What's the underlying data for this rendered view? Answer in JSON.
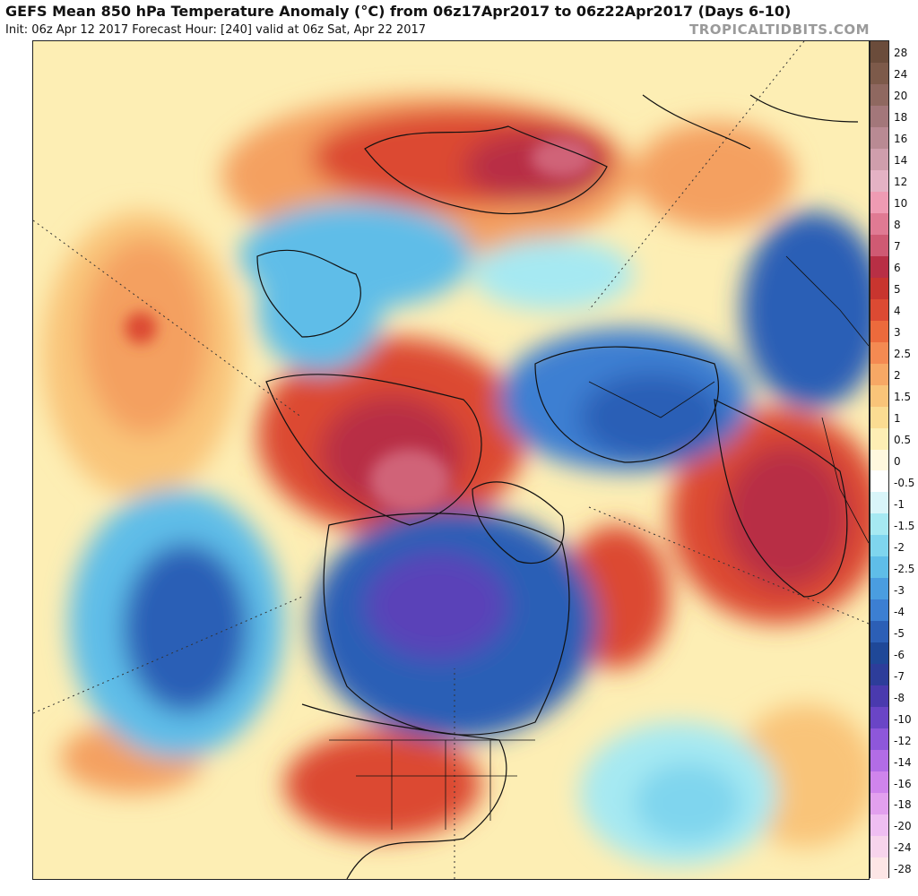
{
  "header": {
    "title": "GEFS Mean 850 hPa Temperature Anomaly (°C) from 06z17Apr2017 to 06z22Apr2017 (Days 6-10)",
    "subtitle": "Init: 06z Apr 12 2017   Forecast Hour: [240]   valid at 06z Sat, Apr 22 2017",
    "brand": "TROPICALTIDBITS.COM"
  },
  "colorbar": {
    "labels": [
      "28",
      "24",
      "20",
      "18",
      "16",
      "14",
      "12",
      "10",
      "8",
      "7",
      "6",
      "5",
      "4",
      "3",
      "2.5",
      "2",
      "1.5",
      "1",
      "0.5",
      "0",
      "-0.5",
      "-1",
      "-1.5",
      "-2",
      "-2.5",
      "-3",
      "-4",
      "-5",
      "-6",
      "-7",
      "-8",
      "-10",
      "-12",
      "-14",
      "-16",
      "-18",
      "-20",
      "-24",
      "-28"
    ],
    "colors": [
      "#6b4c3b",
      "#7d5a4a",
      "#8f6860",
      "#a3777a",
      "#b98a93",
      "#cf9eac",
      "#e4b2c4",
      "#ef9bb3",
      "#e07a93",
      "#cf5a73",
      "#b82f45",
      "#c8352f",
      "#dc4a33",
      "#ec6a3c",
      "#f48a52",
      "#f7a865",
      "#f9c479",
      "#fbdc92",
      "#fdeeb4",
      "#fff8de",
      "#ffffff",
      "#d9f5f9",
      "#a6e9f2",
      "#7fd5ee",
      "#5fbde8",
      "#4a9de0",
      "#3c7fd2",
      "#2c5fb6",
      "#1f4898",
      "#2d3d9a",
      "#4a3aae",
      "#6a45c6",
      "#8e57da",
      "#b26ce6",
      "#cf84ec",
      "#e2a0ee",
      "#efbef2",
      "#f7d4ec",
      "#fde6e6"
    ]
  },
  "map": {
    "colors": {
      "ocean_neutral": "#fdeeb4",
      "warm_light": "#fbdc92",
      "warm_mid": "#f4a060",
      "warm_strong": "#dc4a33",
      "warm_extreme": "#b82f45",
      "warm_peak": "#d06478",
      "cool_light": "#a6e9f2",
      "cool_mid": "#5fbde8",
      "cool_strong": "#2c5fb6",
      "cool_extreme": "#5a42b8",
      "coast": "#111111",
      "grid": "#333333"
    }
  }
}
